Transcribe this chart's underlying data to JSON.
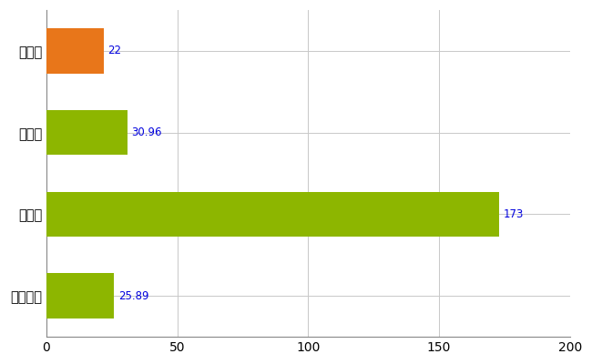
{
  "categories": [
    "杉戸町",
    "県平均",
    "県最大",
    "全国平均"
  ],
  "values": [
    22,
    30.96,
    173,
    25.89
  ],
  "bar_colors": [
    "#E8761A",
    "#8DB600",
    "#8DB600",
    "#8DB600"
  ],
  "value_labels": [
    "22",
    "30.96",
    "173",
    "25.89"
  ],
  "xlim": [
    0,
    200
  ],
  "xticks": [
    0,
    50,
    100,
    150,
    200
  ],
  "background_color": "#ffffff",
  "grid_color": "#c8c8c8",
  "label_color": "#0000dd",
  "bar_height": 0.55,
  "figsize": [
    6.5,
    4.0
  ],
  "dpi": 100,
  "label_fontsize": 8.5,
  "tick_fontsize": 10,
  "ytick_fontsize": 10.5
}
